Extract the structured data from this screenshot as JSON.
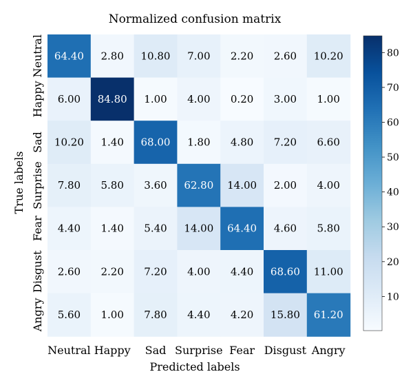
{
  "chart_data": {
    "type": "heatmap",
    "title": "Normalized confusion matrix",
    "xlabel": "Predicted labels",
    "ylabel": "True labels",
    "x_categories": [
      "Neutral",
      "Happy",
      "Sad",
      "Surprise",
      "Fear",
      "Disgust",
      "Angry"
    ],
    "y_categories": [
      "Neutral",
      "Happy",
      "Sad",
      "Surprise",
      "Fear",
      "Disgust",
      "Angry"
    ],
    "values": [
      [
        "64.40",
        "2.80",
        "10.80",
        "7.00",
        "2.20",
        "2.60",
        "10.20"
      ],
      [
        "6.00",
        "84.80",
        "1.00",
        "4.00",
        "0.20",
        "3.00",
        "1.00"
      ],
      [
        "10.20",
        "1.40",
        "68.00",
        "1.80",
        "4.80",
        "7.20",
        "6.60"
      ],
      [
        "7.80",
        "5.80",
        "3.60",
        "62.80",
        "14.00",
        "2.00",
        "4.00"
      ],
      [
        "4.40",
        "1.40",
        "5.40",
        "14.00",
        "64.40",
        "4.60",
        "5.80"
      ],
      [
        "2.60",
        "2.20",
        "7.20",
        "4.00",
        "4.40",
        "68.60",
        "11.00"
      ],
      [
        "5.60",
        "1.00",
        "7.80",
        "4.40",
        "4.20",
        "15.80",
        "61.20"
      ]
    ],
    "colorbar": {
      "ticks": [
        "10",
        "20",
        "30",
        "40",
        "50",
        "60",
        "70",
        "80"
      ],
      "min": 0.2,
      "max": 84.8,
      "colormap": "Blues",
      "low_color": "#f7fbff",
      "high_color": "#08306b"
    },
    "grid": false,
    "legend": "colorbar-right"
  }
}
